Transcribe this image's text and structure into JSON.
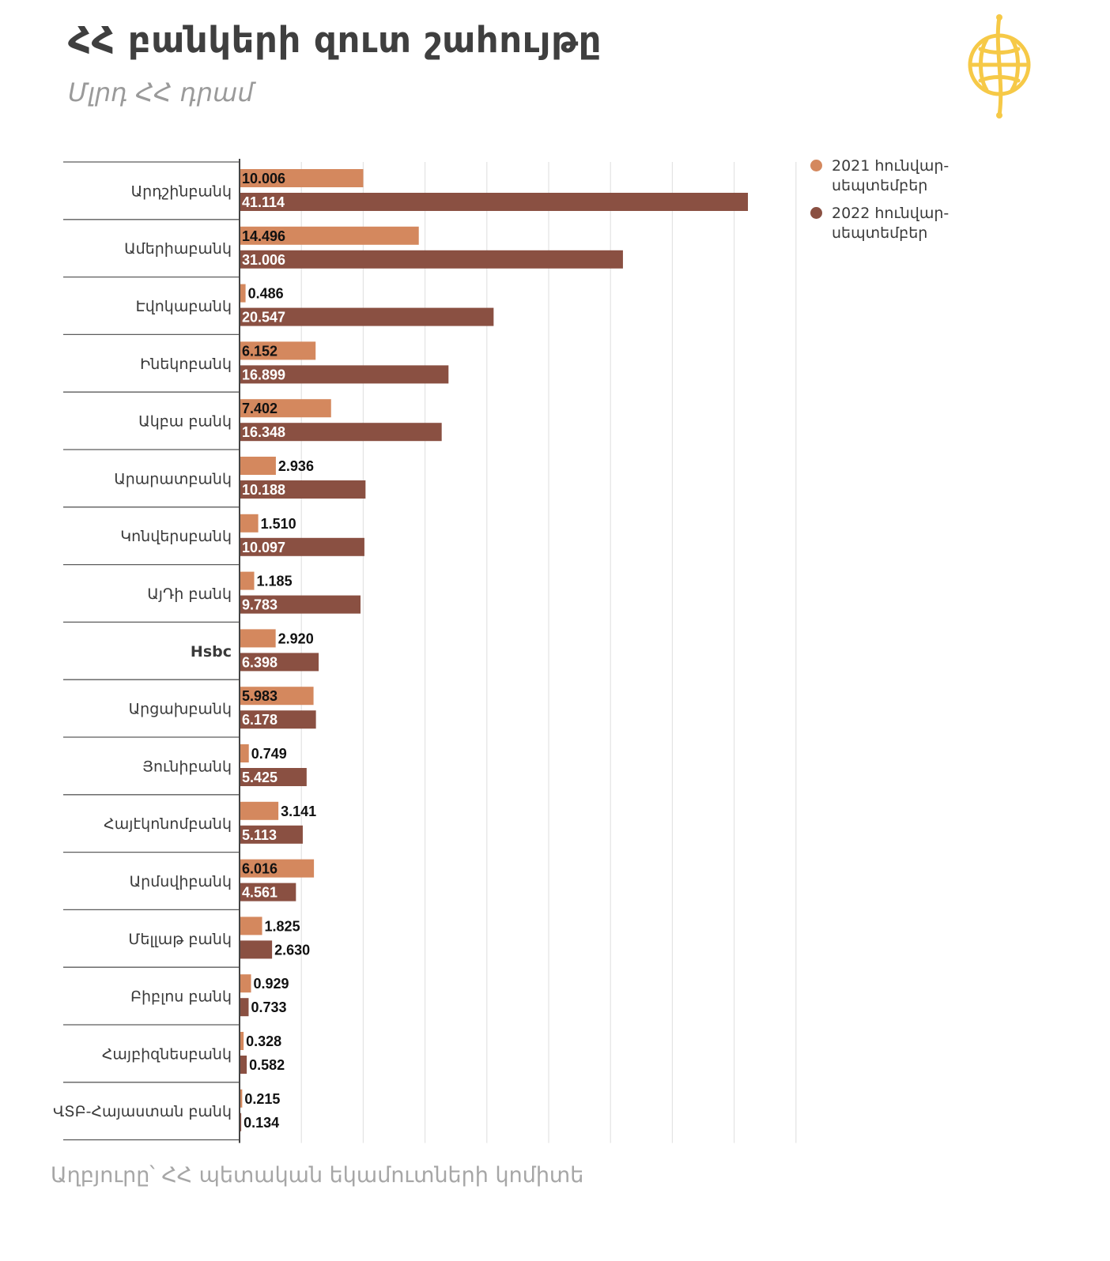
{
  "colors": {
    "series_2021": "#d4885e",
    "series_2022": "#8a5042",
    "logo": "#f6c947"
  },
  "logo": {
    "icon": "globe-logo-icon"
  },
  "chart_data": {
    "type": "bar",
    "orientation": "horizontal",
    "title": "ՀՀ բանկերի զուտ շահույթը",
    "subtitle": "Մլրդ ՀՀ դրամ",
    "source": "Աղբյուրը՝ ՀՀ պետական եկամուտների կոմիտե",
    "categories": [
      "Արդշինբանկ",
      "Ամերիաբանկ",
      "Էվոկաբանկ",
      "Ինեկոբանկ",
      "Ակբա բանկ",
      "Արարատբանկ",
      "Կոնվերսբանկ",
      "ԱյԴի բանկ",
      "Hsbc",
      "Արցախբանկ",
      "Յունիբանկ",
      "Հայէկոնոմբանկ",
      "Արմսվիբանկ",
      "Մելլաթ բանկ",
      "Բիբլոս բանկ",
      "Հայբիզնեսբանկ",
      "ՎՏԲ-Հայաստան բանկ"
    ],
    "series": [
      {
        "name": "2021 հունվար-\nսեպտեմբեր",
        "values": [
          10.006,
          14.496,
          0.486,
          6.152,
          7.402,
          2.936,
          1.51,
          1.185,
          2.92,
          5.983,
          0.749,
          3.141,
          6.016,
          1.825,
          0.929,
          0.328,
          0.215
        ],
        "labels": [
          "10.006",
          "14.496",
          "0.486",
          "6.152",
          "7.402",
          "2.936",
          "1.510",
          "1.185",
          "2.920",
          "5.983",
          "0.749",
          "3.141",
          "6.016",
          "1.825",
          "0.929",
          "0.328",
          "0.215"
        ]
      },
      {
        "name": "2022 հունվար-\nսեպտեմբեր",
        "values": [
          41.114,
          31.006,
          20.547,
          16.899,
          16.348,
          10.188,
          10.097,
          9.783,
          6.398,
          6.178,
          5.425,
          5.113,
          4.561,
          2.63,
          0.733,
          0.582,
          0.134
        ],
        "labels": [
          "41.114",
          "31.006",
          "20.547",
          "16.899",
          "16.348",
          "10.188",
          "10.097",
          "9.783",
          "6.398",
          "6.178",
          "5.425",
          "5.113",
          "4.561",
          "2.630",
          "0.733",
          "0.582",
          "0.134"
        ]
      }
    ],
    "xlim": [
      0,
      45
    ],
    "grid_step": 5,
    "grid": true,
    "legend_position": "top-right"
  }
}
